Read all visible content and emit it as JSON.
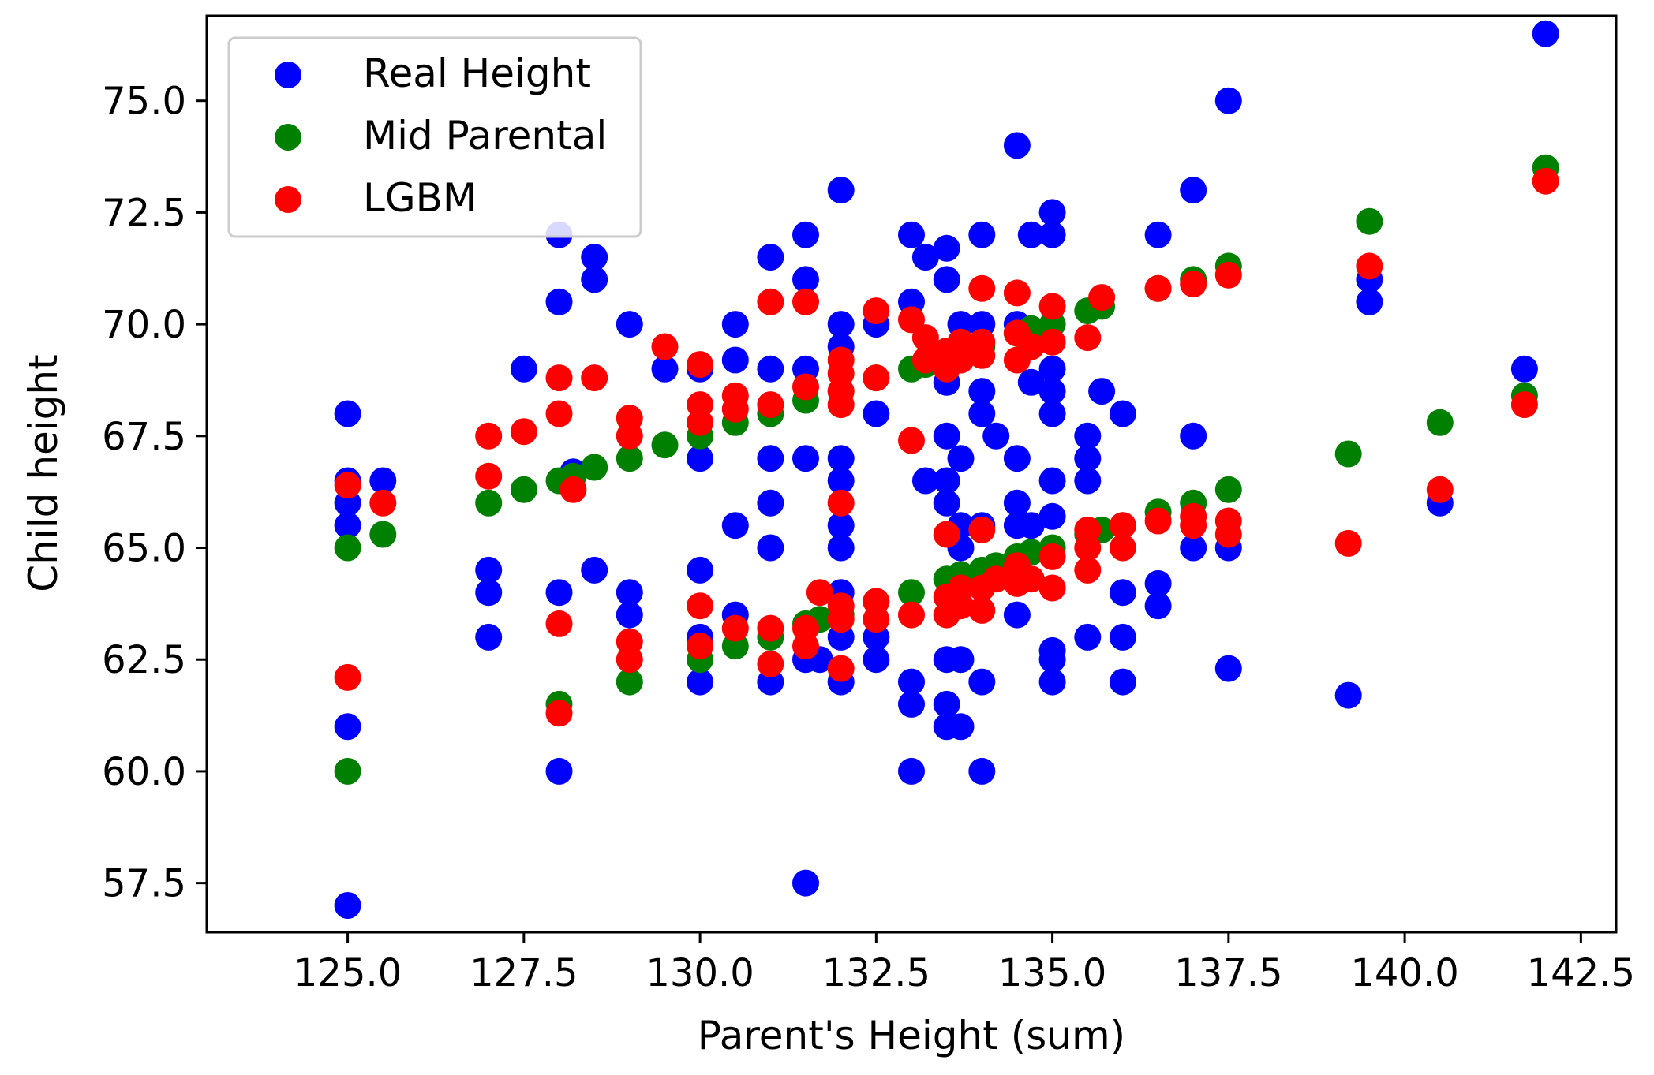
{
  "chart_data": {
    "type": "scatter",
    "title": "",
    "xlabel": "Parent's Height (sum)",
    "ylabel": "Child height",
    "xlim": [
      123.0,
      143.0
    ],
    "ylim": [
      56.4,
      76.9
    ],
    "xticks": [
      "125.0",
      "127.5",
      "130.0",
      "132.5",
      "135.0",
      "137.5",
      "140.0",
      "142.5"
    ],
    "yticks": [
      "57.5",
      "60.0",
      "62.5",
      "65.0",
      "67.5",
      "70.0",
      "72.5",
      "75.0"
    ],
    "grid": false,
    "legend_position": "upper-left",
    "series": [
      {
        "name": "Real Height",
        "color": "#0000ff",
        "points": [
          [
            125.0,
            57.0
          ],
          [
            125.0,
            61.0
          ],
          [
            125.0,
            65.5
          ],
          [
            125.0,
            66.0
          ],
          [
            125.0,
            66.5
          ],
          [
            125.0,
            68.0
          ],
          [
            125.5,
            66.5
          ],
          [
            127.0,
            63.0
          ],
          [
            127.0,
            64.0
          ],
          [
            127.0,
            64.5
          ],
          [
            127.5,
            69.0
          ],
          [
            128.0,
            60.0
          ],
          [
            128.0,
            64.0
          ],
          [
            128.0,
            70.5
          ],
          [
            128.0,
            72.0
          ],
          [
            128.2,
            66.7
          ],
          [
            128.5,
            64.5
          ],
          [
            128.5,
            71.0
          ],
          [
            128.5,
            71.5
          ],
          [
            129.0,
            63.5
          ],
          [
            129.0,
            64.0
          ],
          [
            129.0,
            70.0
          ],
          [
            129.5,
            69.0
          ],
          [
            130.0,
            62.0
          ],
          [
            130.0,
            63.0
          ],
          [
            130.0,
            64.5
          ],
          [
            130.0,
            67.0
          ],
          [
            130.0,
            69.0
          ],
          [
            130.5,
            63.5
          ],
          [
            130.5,
            65.5
          ],
          [
            130.5,
            69.2
          ],
          [
            130.5,
            70.0
          ],
          [
            131.0,
            62.0
          ],
          [
            131.0,
            65.0
          ],
          [
            131.0,
            66.0
          ],
          [
            131.0,
            67.0
          ],
          [
            131.0,
            69.0
          ],
          [
            131.0,
            71.5
          ],
          [
            131.5,
            57.5
          ],
          [
            131.5,
            62.5
          ],
          [
            131.5,
            67.0
          ],
          [
            131.5,
            69.0
          ],
          [
            131.5,
            71.0
          ],
          [
            131.5,
            72.0
          ],
          [
            131.7,
            62.5
          ],
          [
            132.0,
            62.0
          ],
          [
            132.0,
            63.0
          ],
          [
            132.0,
            64.0
          ],
          [
            132.0,
            65.0
          ],
          [
            132.0,
            65.5
          ],
          [
            132.0,
            66.5
          ],
          [
            132.0,
            67.0
          ],
          [
            132.0,
            69.5
          ],
          [
            132.0,
            70.0
          ],
          [
            132.0,
            73.0
          ],
          [
            132.5,
            62.5
          ],
          [
            132.5,
            63.0
          ],
          [
            132.5,
            68.0
          ],
          [
            132.5,
            70.0
          ],
          [
            133.0,
            60.0
          ],
          [
            133.0,
            61.5
          ],
          [
            133.0,
            62.0
          ],
          [
            133.0,
            70.5
          ],
          [
            133.0,
            72.0
          ],
          [
            133.2,
            66.5
          ],
          [
            133.2,
            71.5
          ],
          [
            133.5,
            61.0
          ],
          [
            133.5,
            61.5
          ],
          [
            133.5,
            62.5
          ],
          [
            133.5,
            66.0
          ],
          [
            133.5,
            66.5
          ],
          [
            133.5,
            67.5
          ],
          [
            133.5,
            68.7
          ],
          [
            133.5,
            71.0
          ],
          [
            133.5,
            71.7
          ],
          [
            133.7,
            61.0
          ],
          [
            133.7,
            62.5
          ],
          [
            133.7,
            65.0
          ],
          [
            133.7,
            65.5
          ],
          [
            133.7,
            67.0
          ],
          [
            133.7,
            70.0
          ],
          [
            134.0,
            60.0
          ],
          [
            134.0,
            62.0
          ],
          [
            134.0,
            65.5
          ],
          [
            134.0,
            68.0
          ],
          [
            134.0,
            68.5
          ],
          [
            134.0,
            70.0
          ],
          [
            134.0,
            72.0
          ],
          [
            134.2,
            67.5
          ],
          [
            134.5,
            63.5
          ],
          [
            134.5,
            65.5
          ],
          [
            134.5,
            66.0
          ],
          [
            134.5,
            67.0
          ],
          [
            134.5,
            70.0
          ],
          [
            134.5,
            74.0
          ],
          [
            134.7,
            65.5
          ],
          [
            134.7,
            68.7
          ],
          [
            134.7,
            72.0
          ],
          [
            135.0,
            62.0
          ],
          [
            135.0,
            62.5
          ],
          [
            135.0,
            62.7
          ],
          [
            135.0,
            65.7
          ],
          [
            135.0,
            66.5
          ],
          [
            135.0,
            68.0
          ],
          [
            135.0,
            68.5
          ],
          [
            135.0,
            69.0
          ],
          [
            135.0,
            72.0
          ],
          [
            135.0,
            72.5
          ],
          [
            135.5,
            63.0
          ],
          [
            135.5,
            66.5
          ],
          [
            135.5,
            67.0
          ],
          [
            135.5,
            67.5
          ],
          [
            135.7,
            68.5
          ],
          [
            136.0,
            62.0
          ],
          [
            136.0,
            63.0
          ],
          [
            136.0,
            64.0
          ],
          [
            136.0,
            68.0
          ],
          [
            136.5,
            63.7
          ],
          [
            136.5,
            64.2
          ],
          [
            136.5,
            72.0
          ],
          [
            137.0,
            65.0
          ],
          [
            137.0,
            67.5
          ],
          [
            137.0,
            73.0
          ],
          [
            137.5,
            62.3
          ],
          [
            137.5,
            65.0
          ],
          [
            137.5,
            75.0
          ],
          [
            139.2,
            61.7
          ],
          [
            139.5,
            70.5
          ],
          [
            139.5,
            71.0
          ],
          [
            140.5,
            66.0
          ],
          [
            141.7,
            69.0
          ],
          [
            142.0,
            76.5
          ]
        ]
      },
      {
        "name": "Mid Parental",
        "color": "#008000",
        "points": [
          [
            125.0,
            60.0
          ],
          [
            125.0,
            65.0
          ],
          [
            125.5,
            65.3
          ],
          [
            127.0,
            66.0
          ],
          [
            127.5,
            66.3
          ],
          [
            128.0,
            61.5
          ],
          [
            128.0,
            66.5
          ],
          [
            128.2,
            66.6
          ],
          [
            128.5,
            66.8
          ],
          [
            129.0,
            62.0
          ],
          [
            129.0,
            67.0
          ],
          [
            129.5,
            67.3
          ],
          [
            130.0,
            62.5
          ],
          [
            130.0,
            67.5
          ],
          [
            130.5,
            62.8
          ],
          [
            130.5,
            67.8
          ],
          [
            131.0,
            63.0
          ],
          [
            131.0,
            68.0
          ],
          [
            131.5,
            63.3
          ],
          [
            131.5,
            68.3
          ],
          [
            131.7,
            63.4
          ],
          [
            132.0,
            63.5
          ],
          [
            132.0,
            68.5
          ],
          [
            132.5,
            63.8
          ],
          [
            132.5,
            68.8
          ],
          [
            133.0,
            64.0
          ],
          [
            133.0,
            69.0
          ],
          [
            133.2,
            69.1
          ],
          [
            133.5,
            64.3
          ],
          [
            133.5,
            69.3
          ],
          [
            133.7,
            64.4
          ],
          [
            133.7,
            69.4
          ],
          [
            134.0,
            64.5
          ],
          [
            134.0,
            69.5
          ],
          [
            134.2,
            64.6
          ],
          [
            134.5,
            64.8
          ],
          [
            134.5,
            69.8
          ],
          [
            134.7,
            64.9
          ],
          [
            134.7,
            69.9
          ],
          [
            135.0,
            65.0
          ],
          [
            135.0,
            70.0
          ],
          [
            135.5,
            65.3
          ],
          [
            135.5,
            70.3
          ],
          [
            135.7,
            65.4
          ],
          [
            135.7,
            70.4
          ],
          [
            136.0,
            65.5
          ],
          [
            136.5,
            65.8
          ],
          [
            136.5,
            70.8
          ],
          [
            137.0,
            66.0
          ],
          [
            137.0,
            71.0
          ],
          [
            137.5,
            66.3
          ],
          [
            137.5,
            71.3
          ],
          [
            139.2,
            67.1
          ],
          [
            139.5,
            72.3
          ],
          [
            140.5,
            67.8
          ],
          [
            141.7,
            68.4
          ],
          [
            142.0,
            73.5
          ]
        ]
      },
      {
        "name": "LGBM",
        "color": "#ff0000",
        "points": [
          [
            125.0,
            62.1
          ],
          [
            125.0,
            66.4
          ],
          [
            125.5,
            66.0
          ],
          [
            127.0,
            66.6
          ],
          [
            127.0,
            67.5
          ],
          [
            127.5,
            67.6
          ],
          [
            128.0,
            61.3
          ],
          [
            128.0,
            63.3
          ],
          [
            128.0,
            68.0
          ],
          [
            128.0,
            68.8
          ],
          [
            128.2,
            66.3
          ],
          [
            128.5,
            68.8
          ],
          [
            129.0,
            62.5
          ],
          [
            129.0,
            62.9
          ],
          [
            129.0,
            67.5
          ],
          [
            129.0,
            67.9
          ],
          [
            129.5,
            69.5
          ],
          [
            130.0,
            62.8
          ],
          [
            130.0,
            63.7
          ],
          [
            130.0,
            67.8
          ],
          [
            130.0,
            68.2
          ],
          [
            130.0,
            69.1
          ],
          [
            130.5,
            63.2
          ],
          [
            130.5,
            68.1
          ],
          [
            130.5,
            68.4
          ],
          [
            131.0,
            62.4
          ],
          [
            131.0,
            63.2
          ],
          [
            131.0,
            68.2
          ],
          [
            131.0,
            70.5
          ],
          [
            131.5,
            62.8
          ],
          [
            131.5,
            63.2
          ],
          [
            131.5,
            68.6
          ],
          [
            131.5,
            70.5
          ],
          [
            131.7,
            64.0
          ],
          [
            132.0,
            62.3
          ],
          [
            132.0,
            63.4
          ],
          [
            132.0,
            63.7
          ],
          [
            132.0,
            66.0
          ],
          [
            132.0,
            68.2
          ],
          [
            132.0,
            68.5
          ],
          [
            132.0,
            68.9
          ],
          [
            132.0,
            69.2
          ],
          [
            132.5,
            63.4
          ],
          [
            132.5,
            63.8
          ],
          [
            132.5,
            68.8
          ],
          [
            132.5,
            70.3
          ],
          [
            133.0,
            63.5
          ],
          [
            133.0,
            67.4
          ],
          [
            133.0,
            70.1
          ],
          [
            133.2,
            69.2
          ],
          [
            133.2,
            69.7
          ],
          [
            133.5,
            63.5
          ],
          [
            133.5,
            63.9
          ],
          [
            133.5,
            65.3
          ],
          [
            133.5,
            69.0
          ],
          [
            133.5,
            69.4
          ],
          [
            133.7,
            63.7
          ],
          [
            133.7,
            64.1
          ],
          [
            133.7,
            69.2
          ],
          [
            133.7,
            69.6
          ],
          [
            134.0,
            63.6
          ],
          [
            134.0,
            64.1
          ],
          [
            134.0,
            65.4
          ],
          [
            134.0,
            69.3
          ],
          [
            134.0,
            69.6
          ],
          [
            134.0,
            70.8
          ],
          [
            134.2,
            64.3
          ],
          [
            134.5,
            64.2
          ],
          [
            134.5,
            64.6
          ],
          [
            134.5,
            69.2
          ],
          [
            134.5,
            69.8
          ],
          [
            134.5,
            70.7
          ],
          [
            134.7,
            64.3
          ],
          [
            134.7,
            69.5
          ],
          [
            135.0,
            64.1
          ],
          [
            135.0,
            64.8
          ],
          [
            135.0,
            69.6
          ],
          [
            135.0,
            70.4
          ],
          [
            135.5,
            64.5
          ],
          [
            135.5,
            65.0
          ],
          [
            135.5,
            65.4
          ],
          [
            135.5,
            69.7
          ],
          [
            135.7,
            70.6
          ],
          [
            136.0,
            65.0
          ],
          [
            136.0,
            65.5
          ],
          [
            136.5,
            65.6
          ],
          [
            136.5,
            70.8
          ],
          [
            137.0,
            65.5
          ],
          [
            137.0,
            65.7
          ],
          [
            137.0,
            70.9
          ],
          [
            137.5,
            65.3
          ],
          [
            137.5,
            65.6
          ],
          [
            137.5,
            71.1
          ],
          [
            139.2,
            65.1
          ],
          [
            139.5,
            71.3
          ],
          [
            140.5,
            66.3
          ],
          [
            141.7,
            68.2
          ],
          [
            142.0,
            73.2
          ]
        ]
      }
    ]
  }
}
